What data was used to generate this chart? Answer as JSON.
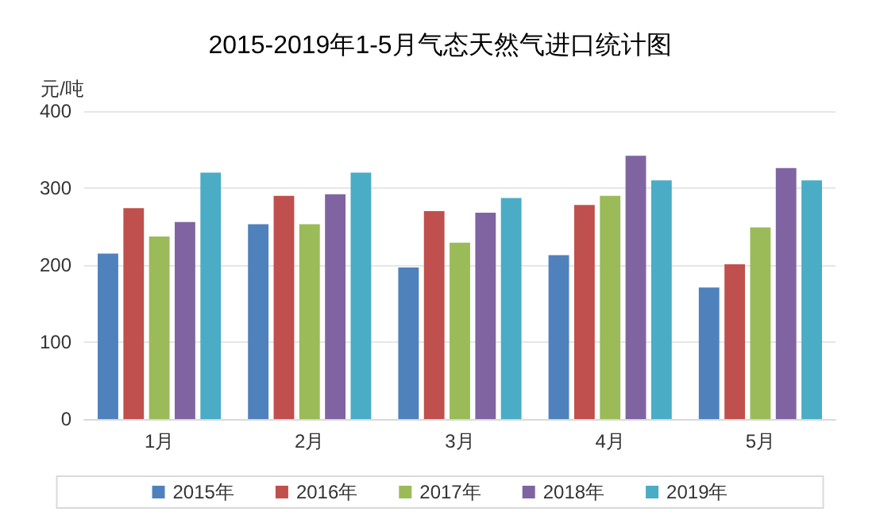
{
  "chart_data": {
    "type": "bar",
    "title": "2015-2019年1-5月气态天然气进口统计图",
    "ylabel": "元/吨",
    "categories": [
      "1月",
      "2月",
      "3月",
      "4月",
      "5月"
    ],
    "series": [
      {
        "name": "2015年",
        "color": "#4f81bd",
        "values": [
          215,
          253,
          197,
          213,
          171
        ]
      },
      {
        "name": "2016年",
        "color": "#c0504d",
        "values": [
          274,
          290,
          270,
          278,
          201
        ]
      },
      {
        "name": "2017年",
        "color": "#9bbb59",
        "values": [
          237,
          253,
          229,
          290,
          249
        ]
      },
      {
        "name": "2018年",
        "color": "#8064a2",
        "values": [
          256,
          292,
          268,
          342,
          326
        ]
      },
      {
        "name": "2019年",
        "color": "#4bacc6",
        "values": [
          320,
          320,
          287,
          310,
          310
        ]
      }
    ],
    "ylim": [
      0,
      400
    ],
    "yticks": [
      0,
      100,
      200,
      300,
      400
    ],
    "grid": "y",
    "legend": "bottom"
  }
}
